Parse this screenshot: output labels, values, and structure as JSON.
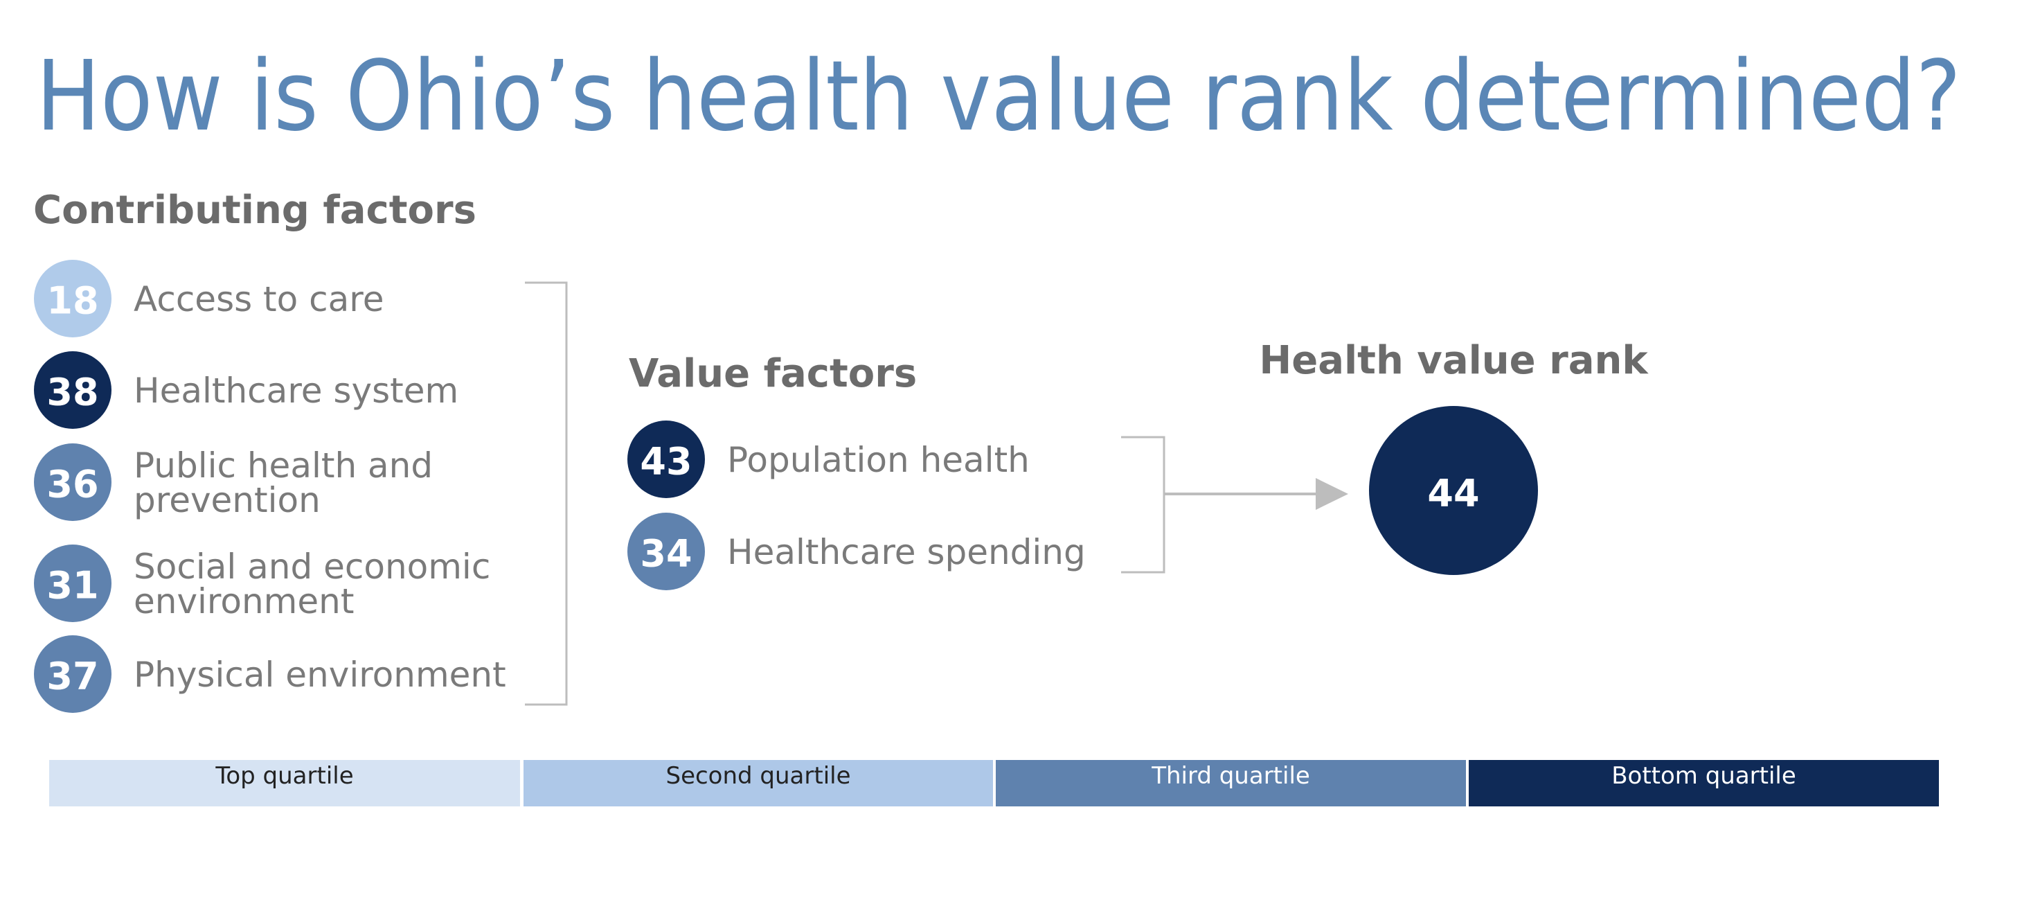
{
  "title": "How is Ohio’s health value rank determined?",
  "contributing_factors": {
    "heading": "Contributing factors",
    "items": [
      {
        "rank": 18,
        "lines": [
          "Access to care"
        ],
        "color": "#b0cbea"
      },
      {
        "rank": 38,
        "lines": [
          "Healthcare system"
        ],
        "color": "#0f2a57"
      },
      {
        "rank": 36,
        "lines": [
          "Public health and",
          "prevention"
        ],
        "color": "#5f82ae"
      },
      {
        "rank": 31,
        "lines": [
          "Social and economic",
          "environment"
        ],
        "color": "#5f82ae"
      },
      {
        "rank": 37,
        "lines": [
          "Physical environment"
        ],
        "color": "#5f82ae"
      }
    ]
  },
  "value_factors": {
    "heading": "Value factors",
    "items": [
      {
        "rank": 43,
        "lines": [
          "Population health"
        ],
        "color": "#0f2a57"
      },
      {
        "rank": 34,
        "lines": [
          "Healthcare spending"
        ],
        "color": "#5f82ae"
      }
    ]
  },
  "health_value_rank": {
    "heading": "Health value rank",
    "rank": 44,
    "color": "#0f2a57"
  },
  "legend": [
    {
      "label": "Top quartile",
      "color": "#d6e3f3"
    },
    {
      "label": "Second quartile",
      "color": "#aec8e8"
    },
    {
      "label": "Third quartile",
      "color": "#5f82ae"
    },
    {
      "label": "Bottom quartile",
      "color": "#0f2a57"
    }
  ]
}
